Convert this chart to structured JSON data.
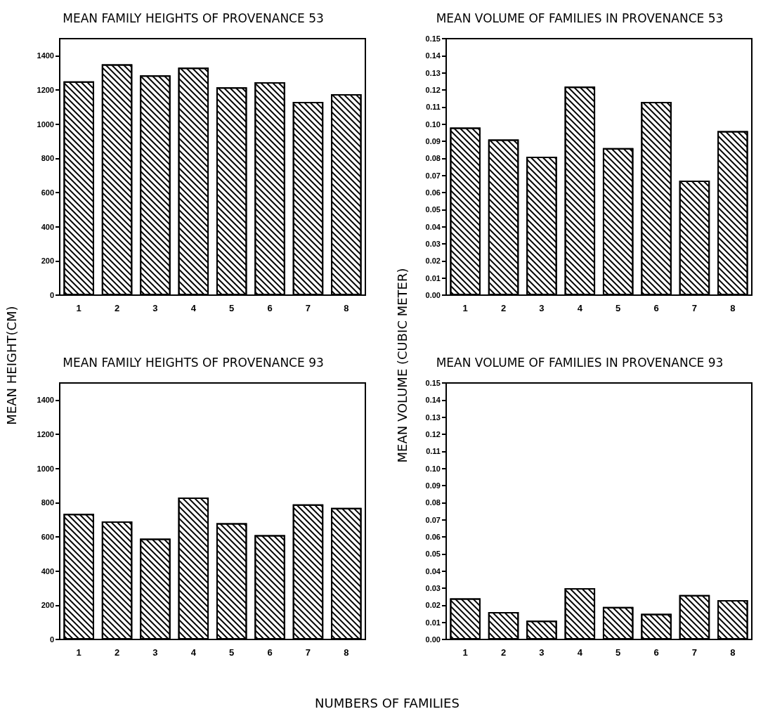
{
  "chart_data": [
    {
      "type": "bar",
      "title": "MEAN FAMILY HEIGHTS OF PROVENANCE 53",
      "ylabel": "MEAN HEIGHT(CM)",
      "categories": [
        "1",
        "2",
        "3",
        "4",
        "5",
        "6",
        "7",
        "8"
      ],
      "values": [
        1250,
        1350,
        1285,
        1330,
        1215,
        1245,
        1130,
        1175
      ],
      "color": "#ffffff",
      "ylim": [
        0,
        1500
      ],
      "yticks": [
        0,
        200,
        400,
        600,
        800,
        1000,
        1200,
        1400
      ],
      "grid": false
    },
    {
      "type": "bar",
      "title": "MEAN VOLUME OF FAMILIES IN PROVENANCE 53",
      "ylabel": "MEAN VOLUME (CUBIC METER)",
      "categories": [
        "1",
        "2",
        "3",
        "4",
        "5",
        "6",
        "7",
        "8"
      ],
      "values": [
        0.098,
        0.091,
        0.081,
        0.122,
        0.086,
        0.113,
        0.067,
        0.096
      ],
      "color": "#ffffff",
      "ylim": [
        0,
        0.15
      ],
      "yticks": [
        {
          "value": 0,
          "label": "0.00"
        },
        {
          "value": 0.01,
          "label": "0.01"
        },
        {
          "value": 0.02,
          "label": "0.02"
        },
        {
          "value": 0.03,
          "label": "0.03"
        },
        {
          "value": 0.04,
          "label": "0.04"
        },
        {
          "value": 0.05,
          "label": "0.05"
        },
        {
          "value": 0.06,
          "label": "0.06"
        },
        {
          "value": 0.07,
          "label": "0.07"
        },
        {
          "value": 0.08,
          "label": "0.08"
        },
        {
          "value": 0.09,
          "label": "0.09"
        },
        {
          "value": 0.1,
          "label": "0.10"
        },
        {
          "value": 0.11,
          "label": "0.11"
        },
        {
          "value": 0.12,
          "label": "0.12"
        },
        {
          "value": 0.13,
          "label": "0.13"
        },
        {
          "value": 0.14,
          "label": "0.14"
        },
        {
          "value": 0.15,
          "label": "0.15"
        }
      ],
      "grid": false
    },
    {
      "type": "bar",
      "title": "MEAN FAMILY HEIGHTS OF PROVENANCE 93",
      "xlabel": "NUMBERS OF FAMILIES",
      "categories": [
        "1",
        "2",
        "3",
        "4",
        "5",
        "6",
        "7",
        "8"
      ],
      "values": [
        735,
        690,
        590,
        830,
        680,
        610,
        790,
        770
      ],
      "color": "#ffffff",
      "ylim": [
        0,
        1500
      ],
      "yticks": [
        0,
        200,
        400,
        600,
        800,
        1000,
        1200,
        1400
      ],
      "grid": false
    },
    {
      "type": "bar",
      "title": "MEAN VOLUME OF FAMILIES IN PROVENANCE 93",
      "categories": [
        "1",
        "2",
        "3",
        "4",
        "5",
        "6",
        "7",
        "8"
      ],
      "values": [
        0.024,
        0.016,
        0.011,
        0.03,
        0.019,
        0.015,
        0.026,
        0.023
      ],
      "color": "#ffffff",
      "ylim": [
        0,
        0.15
      ],
      "yticks": [
        {
          "value": 0,
          "label": "0.00"
        },
        {
          "value": 0.01,
          "label": "0.01"
        },
        {
          "value": 0.02,
          "label": "0.02"
        },
        {
          "value": 0.03,
          "label": "0.03"
        },
        {
          "value": 0.04,
          "label": "0.04"
        },
        {
          "value": 0.05,
          "label": "0.05"
        },
        {
          "value": 0.06,
          "label": "0.06"
        },
        {
          "value": 0.07,
          "label": "0.07"
        },
        {
          "value": 0.08,
          "label": "0.08"
        },
        {
          "value": 0.09,
          "label": "0.09"
        },
        {
          "value": 0.1,
          "label": "0.10"
        },
        {
          "value": 0.11,
          "label": "0.11"
        },
        {
          "value": 0.12,
          "label": "0.12"
        },
        {
          "value": 0.13,
          "label": "0.13"
        },
        {
          "value": 0.14,
          "label": "0.14"
        },
        {
          "value": 0.15,
          "label": "0.15"
        }
      ],
      "grid": false
    }
  ]
}
